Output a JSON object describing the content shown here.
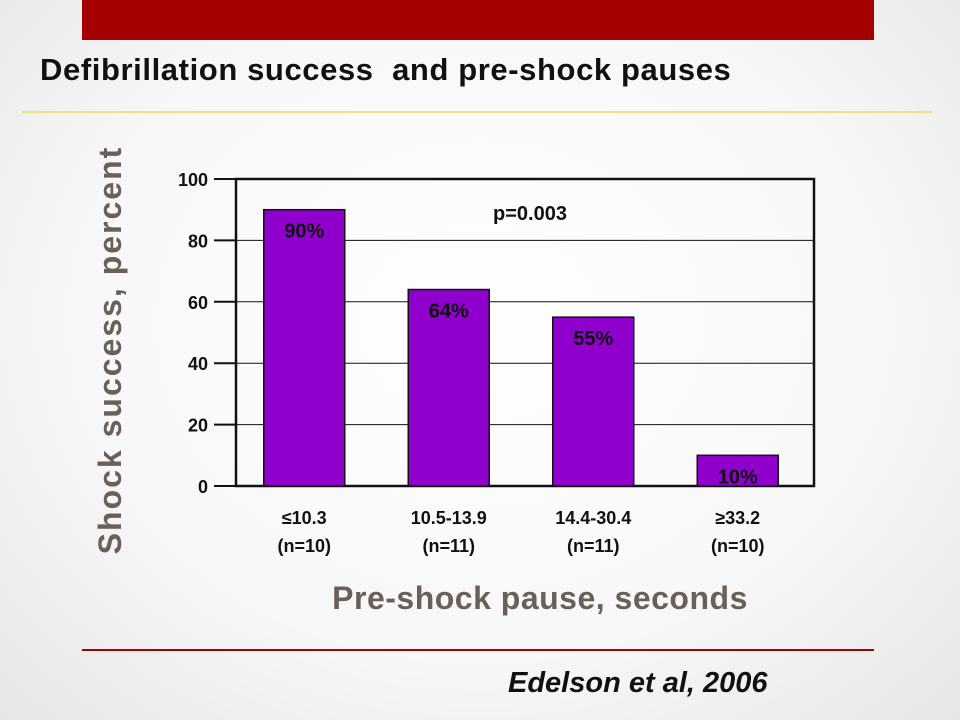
{
  "slide": {
    "title": "Defibrillation success  and pre-shock pauses",
    "citation": "Edelson et al, 2006"
  },
  "colors": {
    "top_bar": "#a50000",
    "title_rule": "#f0e27a",
    "bottom_rule": "#a50000",
    "bar_fill": "#8f00cc",
    "axis_title": "#6b5f5a"
  },
  "chart_data": {
    "type": "bar",
    "categories": [
      [
        "≤10.3",
        "(n=10)"
      ],
      [
        "10.5-13.9",
        "(n=11)"
      ],
      [
        "14.4-30.4",
        "(n=11)"
      ],
      [
        "≥33.2",
        "(n=10)"
      ]
    ],
    "values": [
      90,
      64,
      55,
      10
    ],
    "data_labels": [
      "90%",
      "64%",
      "55%",
      "10%"
    ],
    "xlabel": "Pre-shock pause, seconds",
    "ylabel": "Shock success, percent",
    "ylim": [
      0,
      100
    ],
    "yticks": [
      0,
      20,
      40,
      60,
      80,
      100
    ],
    "annotation": "p=0.003",
    "grid": true,
    "legend": "none"
  }
}
